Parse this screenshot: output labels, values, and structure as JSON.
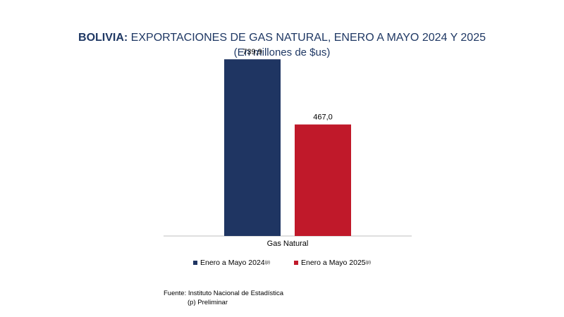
{
  "chart_data": {
    "type": "bar",
    "title_lead": "BOLIVIA:",
    "title_rest": " EXPORTACIONES DE GAS NATURAL, ENERO A MAYO 2024 Y 2025",
    "subtitle": "(En millones de $us)",
    "categories": [
      "Gas Natural"
    ],
    "series": [
      {
        "name": "Enero a Mayo 2024",
        "name_sup": "(p)",
        "values": [
          739.9
        ],
        "value_label": "739,9",
        "color": "#1f3562"
      },
      {
        "name": "Enero a Mayo  2025",
        "name_sup": "(p)",
        "values": [
          467.0
        ],
        "value_label": "467,0",
        "color": "#c0192a"
      }
    ],
    "ylim": [
      0,
      800
    ],
    "grid": false,
    "legend_position": "bottom"
  },
  "footnote": {
    "source": "Fuente: Instituto Nacional de Estadística",
    "note": "(p) Preliminar"
  }
}
